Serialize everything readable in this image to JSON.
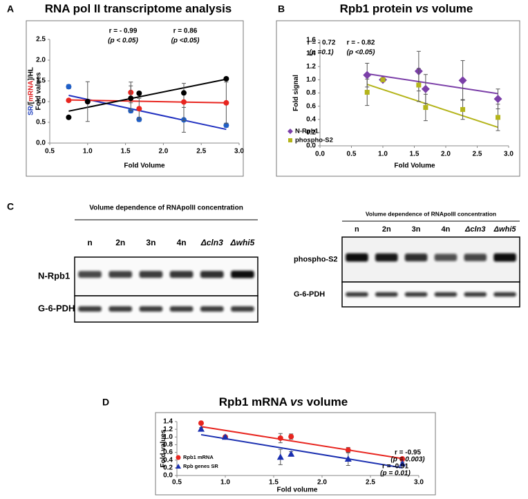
{
  "chart_data": [
    {
      "type": "scatter",
      "panel": "A",
      "title": [
        {
          "text": "RNA pol II transcriptome analysis"
        }
      ],
      "xlabel": "Fold Volume",
      "ylabel_lines": [
        [
          {
            "text": "SR",
            "color": "#2040c0"
          },
          {
            "text": "/[",
            "color": "#000000"
          },
          {
            "text": "mRNA",
            "color": "#e02020"
          },
          {
            "text": "]/HL",
            "color": "#000000"
          }
        ],
        [
          {
            "text": "Fold values",
            "color": "#000000"
          }
        ]
      ],
      "xlim": [
        0.5,
        3.0
      ],
      "xticks": [
        0.5,
        {
          "value": 1,
          "label": "1.0"
        },
        1.5,
        {
          "value": 2,
          "label": "2.0"
        },
        2.5,
        {
          "value": 3,
          "label": "3.0"
        }
      ],
      "ylim": [
        0,
        2.5
      ],
      "yticks": [
        {
          "value": 0,
          "label": "0.0"
        },
        0.5,
        {
          "value": 1,
          "label": "1.0"
        },
        1.5,
        {
          "value": 2,
          "label": "2.0"
        },
        2.5
      ],
      "series": [
        {
          "color": "#1f5fc8",
          "marker": "circle",
          "x": [
            0.75,
            1.0,
            1.57,
            1.68,
            2.27,
            2.83
          ],
          "values": [
            1.36,
            1.0,
            0.78,
            0.57,
            0.56,
            0.43
          ],
          "errors": [
            0.05,
            0,
            0.05,
            0.05,
            0.3,
            0.05
          ]
        },
        {
          "color": "#e8251f",
          "marker": "circle",
          "x": [
            0.75,
            1.0,
            1.57,
            1.68,
            2.27,
            2.83
          ],
          "values": [
            1.03,
            1.0,
            1.22,
            0.83,
            0.99,
            0.97
          ],
          "errors": [
            0.03,
            0,
            0.25,
            0.25,
            0.45,
            0.5
          ]
        },
        {
          "color": "#000000",
          "marker": "circle",
          "x": [
            0.75,
            1.0,
            1.57,
            1.68,
            2.27,
            2.83
          ],
          "values": [
            0.62,
            1.0,
            1.08,
            1.2,
            1.21,
            1.55
          ],
          "errors": [
            0,
            0.48,
            0.3,
            0,
            0,
            0
          ]
        }
      ],
      "trendlines": [
        {
          "color": "#2030c0",
          "x": [
            0.75,
            2.83
          ],
          "y": [
            1.15,
            0.33
          ]
        },
        {
          "color": "#e8251f",
          "x": [
            0.75,
            2.83
          ],
          "y": [
            1.04,
            0.97
          ]
        },
        {
          "color": "#000000",
          "x": [
            0.75,
            2.83
          ],
          "y": [
            0.77,
            1.54
          ]
        }
      ],
      "annotations": [
        {
          "text": "r = - 0.99",
          "color": "#2030c0",
          "italic": false
        },
        {
          "text": "(p < 0.05)",
          "color": "#2030c0",
          "italic": true
        },
        {
          "text": "r = 0.86",
          "color": "#000000",
          "italic": false
        },
        {
          "text": "(p <0.05)",
          "color": "#000000",
          "italic": true
        }
      ]
    },
    {
      "type": "scatter",
      "panel": "B",
      "title": [
        {
          "text": "Rpb1 protein "
        },
        {
          "text": "vs",
          "italic": true
        },
        {
          "text": " volume"
        }
      ],
      "xlabel": "Fold Volume",
      "ylabel_lines": [
        [
          {
            "text": "Fold signal",
            "color": "#000000"
          }
        ]
      ],
      "xlim": [
        0,
        3.0
      ],
      "xticks": [
        {
          "value": 0,
          "label": "0.0"
        },
        0.5,
        {
          "value": 1,
          "label": "1.0"
        },
        1.5,
        {
          "value": 2,
          "label": "2.0"
        },
        2.5,
        {
          "value": 3,
          "label": "3.0"
        }
      ],
      "ylim": [
        0,
        1.6
      ],
      "yticks": [
        {
          "value": 0,
          "label": "0.0"
        },
        0.2,
        0.4,
        0.6,
        0.8,
        {
          "value": 1,
          "label": "1.0"
        },
        1.2,
        1.4,
        1.6
      ],
      "legend": "lower left",
      "series": [
        {
          "name": "N-Rpb1",
          "color": "#7b3fa8",
          "marker": "diamond",
          "x": [
            0.75,
            1.0,
            1.57,
            1.68,
            2.27,
            2.83
          ],
          "values": [
            1.07,
            1.0,
            1.13,
            0.86,
            0.99,
            0.71
          ],
          "errors": [
            0.18,
            0,
            0.3,
            0.22,
            0.3,
            0.15
          ]
        },
        {
          "name": "phospho-S2",
          "color": "#b4b41a",
          "marker": "square",
          "x": [
            0.75,
            1.0,
            1.57,
            1.68,
            2.27,
            2.83
          ],
          "values": [
            0.81,
            1.0,
            0.92,
            0.58,
            0.55,
            0.43
          ],
          "errors": [
            0.2,
            0,
            0.25,
            0.2,
            0.15,
            0.2
          ]
        }
      ],
      "trendlines": [
        {
          "color": "#7b3fa8",
          "x": [
            0.75,
            2.83
          ],
          "y": [
            1.09,
            0.79
          ]
        },
        {
          "color": "#b4b41a",
          "x": [
            0.75,
            2.83
          ],
          "y": [
            0.93,
            0.28
          ]
        }
      ],
      "annotations": [
        {
          "text": "r = - 0.72",
          "color": "#7b3fa8",
          "italic": false
        },
        {
          "text": "(p =0.1)",
          "color": "#7b3fa8",
          "italic": true
        },
        {
          "text": "r = - 0.82",
          "color": "#b4b41a",
          "italic": false
        },
        {
          "text": "(p <0.05)",
          "color": "#b4b41a",
          "italic": true
        }
      ]
    },
    {
      "type": "scatter",
      "panel": "D",
      "title": [
        {
          "text": "Rpb1 mRNA  "
        },
        {
          "text": "vs",
          "italic": true
        },
        {
          "text": " volume"
        }
      ],
      "xlabel": "Fold volume",
      "ylabel_lines": [
        [
          {
            "text": "Fold values",
            "color": "#000000"
          }
        ]
      ],
      "xlim": [
        0.5,
        3.0
      ],
      "xticks": [
        0.5,
        {
          "value": 1,
          "label": "1.0"
        },
        1.5,
        {
          "value": 2,
          "label": "2.0"
        },
        2.5,
        {
          "value": 3,
          "label": "3.0"
        }
      ],
      "ylim": [
        0,
        1.4
      ],
      "yticks": [
        {
          "value": 0,
          "label": "0.0"
        },
        0.2,
        0.4,
        0.6,
        0.8,
        {
          "value": 1,
          "label": "1.0"
        },
        1.2,
        1.4
      ],
      "legend": "lower left",
      "series": [
        {
          "name": "Rpb1 mRNA",
          "color": "#e8251f",
          "marker": "circle",
          "x": [
            0.75,
            1.0,
            1.57,
            1.68,
            2.27,
            2.83
          ],
          "values": [
            1.36,
            1.0,
            0.97,
            1.01,
            0.66,
            0.43
          ],
          "errors": [
            0.03,
            0.03,
            0.12,
            0.07,
            0.07,
            0.03
          ]
        },
        {
          "name": "Rpb genes SR",
          "color": "#1a2fb0",
          "marker": "triangle",
          "x": [
            0.75,
            1.0,
            1.57,
            1.68,
            2.27,
            2.83
          ],
          "values": [
            1.21,
            1.0,
            0.48,
            0.56,
            0.43,
            0.31
          ],
          "errors": [
            0.03,
            0.03,
            0.2,
            0.06,
            0.17,
            0.04
          ]
        }
      ],
      "trendlines": [
        {
          "color": "#e8251f",
          "x": [
            0.75,
            2.83
          ],
          "y": [
            1.27,
            0.44
          ]
        },
        {
          "color": "#1a2fb0",
          "x": [
            0.75,
            2.83
          ],
          "y": [
            1.06,
            0.2
          ]
        }
      ],
      "annotations": [
        {
          "text": "r = -0.95",
          "color": "#e8251f",
          "italic": false
        },
        {
          "text": "(p = 0.003)",
          "color": "#e8251f",
          "italic": true
        },
        {
          "text": "r = -0.91",
          "color": "#1a2fb0",
          "italic": false
        },
        {
          "text": "(p = 0.01)",
          "color": "#1a2fb0",
          "italic": true
        }
      ]
    }
  ],
  "blots": {
    "panel": "C",
    "left": {
      "heading": "Volume dependence of RNApolII concentration",
      "lanes": [
        "n",
        "2n",
        "3n",
        "4n",
        "Δcln3",
        "Δwhi5"
      ],
      "rows": [
        "N-Rpb1",
        "G-6-PDH"
      ]
    },
    "right": {
      "heading": "Volume dependence of RNApolII concentration",
      "lanes": [
        "n",
        "2n",
        "3n",
        "4n",
        "Δcln3",
        "Δwhi5"
      ],
      "rows": [
        "phospho-S2",
        "G-6-PDH"
      ]
    }
  }
}
